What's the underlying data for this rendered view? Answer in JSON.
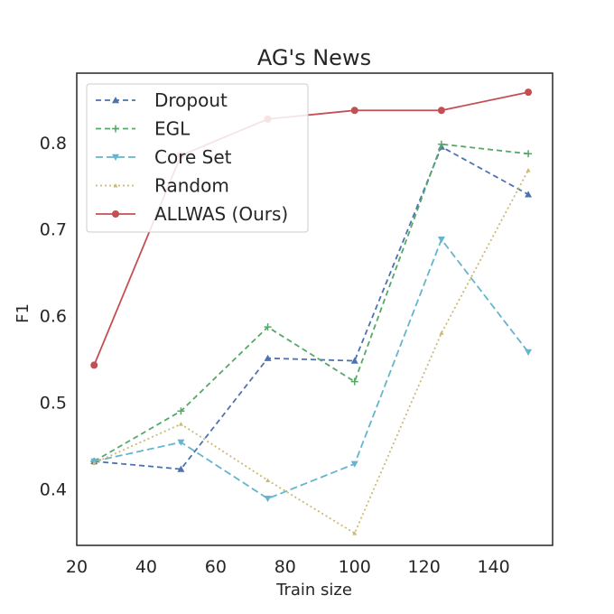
{
  "chart_data": {
    "type": "line",
    "title": "AG's News",
    "xlabel": "Train size",
    "ylabel": "F1",
    "xlim": [
      20,
      157
    ],
    "ylim": [
      0.335,
      0.88
    ],
    "xticks": [
      20,
      40,
      60,
      80,
      100,
      120,
      140
    ],
    "yticks": [
      0.4,
      0.5,
      0.6,
      0.7,
      0.8
    ],
    "xtick_labels": [
      "20",
      "40",
      "60",
      "80",
      "100",
      "120",
      "140"
    ],
    "ytick_labels": [
      "0.4",
      "0.5",
      "0.6",
      "0.7",
      "0.8"
    ],
    "grid": false,
    "legend_position": "top-left",
    "x": [
      25,
      50,
      75,
      100,
      125,
      150
    ],
    "series": [
      {
        "name": "Dropout",
        "values": [
          0.432,
          0.423,
          0.551,
          0.548,
          0.795,
          0.74
        ],
        "color": "#4c72b0",
        "dash": "6,4",
        "marker": "triangle-up"
      },
      {
        "name": "EGL",
        "values": [
          0.432,
          0.49,
          0.587,
          0.524,
          0.798,
          0.787
        ],
        "color": "#55a868",
        "dash": "6,4",
        "marker": "plus"
      },
      {
        "name": "Core Set",
        "values": [
          0.432,
          0.454,
          0.389,
          0.429,
          0.688,
          0.558
        ],
        "color": "#64b5cd",
        "dash": "8,4",
        "marker": "triangle-down"
      },
      {
        "name": "Random",
        "values": [
          0.43,
          0.475,
          0.41,
          0.349,
          0.58,
          0.768
        ],
        "color": "#ccb974",
        "dash": "2,3",
        "marker": "triangle-up-small"
      },
      {
        "name": "ALLWAS (Ours)",
        "values": [
          0.543,
          0.785,
          0.827,
          0.837,
          0.837,
          0.858
        ],
        "color": "#c44e52",
        "dash": "",
        "marker": "circle"
      }
    ]
  }
}
